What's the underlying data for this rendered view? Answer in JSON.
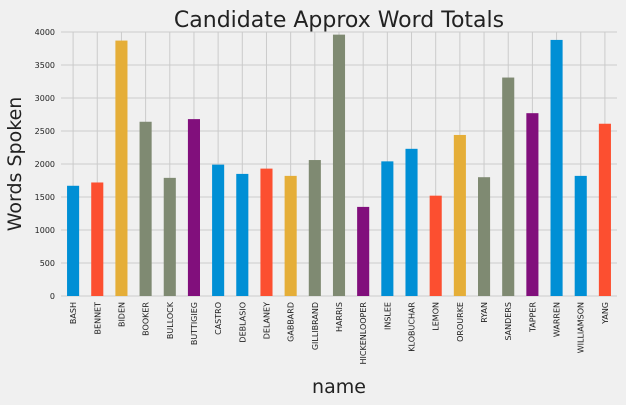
{
  "chart_data": {
    "type": "bar",
    "title": "Candidate Approx Word Totals",
    "xlabel": "name",
    "ylabel": "Words Spoken",
    "ylim": [
      0,
      4000
    ],
    "yticks": [
      0,
      500,
      1000,
      1500,
      2000,
      2500,
      3000,
      3500,
      4000
    ],
    "grid": true,
    "categories": [
      "BASH",
      "BENNET",
      "BIDEN",
      "BOOKER",
      "BULLOCK",
      "BUTTIGIEG",
      "CASTRO",
      "DEBLASIO",
      "DELANEY",
      "GABBARD",
      "GILLIBRAND",
      "HARRIS",
      "HICKENLOOPER",
      "INSLEE",
      "KLOBUCHAR",
      "LEMON",
      "OROURKE",
      "RYAN",
      "SANDERS",
      "TAPPER",
      "WARREN",
      "WILLIAMSON",
      "YANG"
    ],
    "values": [
      1670,
      1720,
      3870,
      2640,
      1790,
      2680,
      1990,
      1850,
      1930,
      1820,
      2060,
      3960,
      1350,
      2040,
      2230,
      1520,
      2440,
      1800,
      3310,
      2770,
      3880,
      1820,
      2610
    ],
    "colors": [
      "#008fd5",
      "#fc4f30",
      "#e5ae38",
      "#810f7c",
      "#8b8b8b",
      "#6d904f",
      "#7f8a72"
    ],
    "bar_colors": [
      "#008fd5",
      "#fc4f30",
      "#e5ae38",
      "#7f8a72",
      "#7f8a72",
      "#810f7c",
      "#008fd5",
      "#008fd5",
      "#fc4f30",
      "#e5ae38",
      "#7f8a72",
      "#7f8a72",
      "#810f7c",
      "#008fd5",
      "#008fd5",
      "#fc4f30",
      "#e5ae38",
      "#7f8a72",
      "#7f8a72",
      "#810f7c",
      "#008fd5",
      "#008fd5",
      "#fc4f30"
    ]
  }
}
